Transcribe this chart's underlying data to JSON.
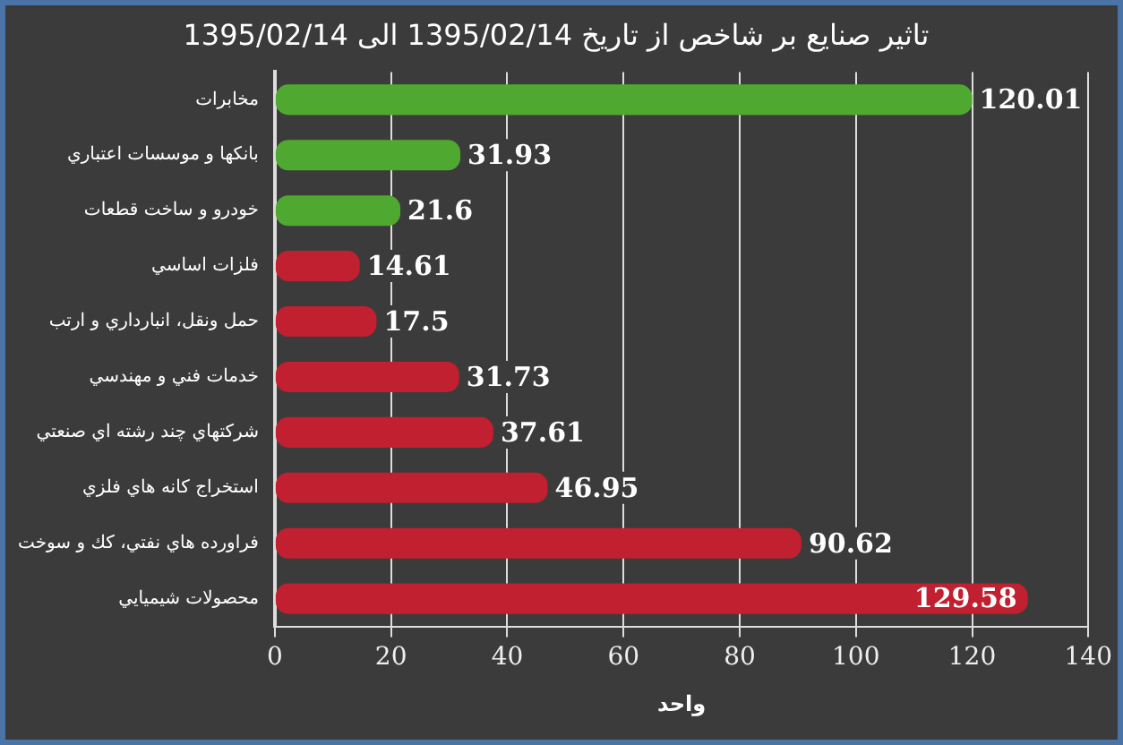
{
  "chart_data": {
    "type": "bar",
    "orientation": "horizontal",
    "title": "تاثير صنايع بر شاخص از تاريخ 1395/02/14 الی 1395/02/14",
    "xlabel": "واحد",
    "categories": [
      "مخابرات",
      "بانکها و موسسات اعتباري",
      "خودرو و ساخت قطعات",
      "فلزات اساسي",
      "حمل ونقل، انبارداري و ارتب",
      "خدمات فني و مهندسي",
      "شرکتهاي چند رشته اي صنعتي",
      "استخراج کانه هاي فلزي",
      "فراورده هاي نفتي، کك و سوخت",
      "محصولات شيميايي"
    ],
    "values": [
      120.01,
      31.93,
      21.6,
      14.61,
      17.5,
      31.73,
      37.61,
      46.95,
      90.62,
      129.58
    ],
    "colors": [
      "#4fa82f",
      "#4fa82f",
      "#4fa82f",
      "#c0202f",
      "#c0202f",
      "#c0202f",
      "#c0202f",
      "#c0202f",
      "#c0202f",
      "#c0202f"
    ],
    "xlim": [
      0,
      140
    ],
    "xticks": [
      0,
      20,
      40,
      60,
      80,
      100,
      120,
      140
    ],
    "grid": "x",
    "legend": false,
    "data_labels": true
  }
}
